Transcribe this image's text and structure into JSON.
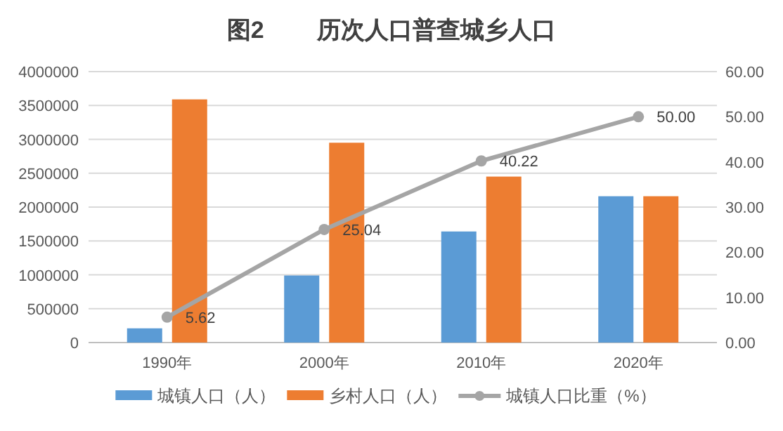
{
  "chart_data": {
    "type": "bar",
    "title": "图2        历次人口普查城乡人口",
    "categories": [
      "1990年",
      "2000年",
      "2010年",
      "2020年"
    ],
    "series": [
      {
        "name": "城镇人口（人）",
        "color": "#5b9bd5",
        "values": [
          210000,
          990000,
          1640000,
          2160000
        ]
      },
      {
        "name": "乡村人口（人）",
        "color": "#ed7d31",
        "values": [
          3590000,
          2950000,
          2450000,
          2160000
        ]
      },
      {
        "name": "城镇人口比重（%）",
        "type": "line",
        "axis": "y2",
        "color": "#a5a5a5",
        "marker": "circle",
        "values": [
          5.62,
          25.04,
          40.22,
          50.0
        ],
        "value_labels": [
          "5.62",
          "25.04",
          "40.22",
          "50.00"
        ]
      }
    ],
    "ylim": [
      0,
      4000000
    ],
    "yticks": [
      0,
      500000,
      1000000,
      1500000,
      2000000,
      2500000,
      3000000,
      3500000,
      4000000
    ],
    "y2lim": [
      0,
      60
    ],
    "y2ticks": [
      {
        "value": 0,
        "label": "0.00"
      },
      {
        "value": 10,
        "label": "10.00"
      },
      {
        "value": 20,
        "label": "20.00"
      },
      {
        "value": 30,
        "label": "30.00"
      },
      {
        "value": 40,
        "label": "40.00"
      },
      {
        "value": 50,
        "label": "50.00"
      },
      {
        "value": 60,
        "label": "60.00"
      }
    ],
    "grid": "y",
    "legend": "bottom"
  }
}
